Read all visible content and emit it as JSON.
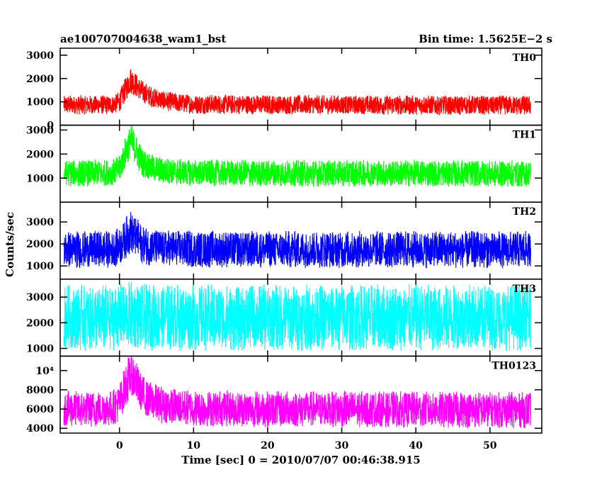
{
  "header": {
    "title": "ae100707004638_wam1_bst",
    "bin_time": "Bin time: 1.5625E−2 s"
  },
  "axes": {
    "xlabel": "Time [sec] 0 = 2010/07/07 00:46:38.915",
    "ylabel": "Counts/sec"
  },
  "chart_data": {
    "type": "line",
    "title": "ae100707004638_wam1_bst",
    "xlabel": "Time [sec] 0 = 2010/07/07 00:46:38.915",
    "ylabel": "Counts/sec",
    "xlim": [
      -8,
      57
    ],
    "x_ticks": [
      0,
      10,
      20,
      30,
      40,
      50
    ],
    "bin_time_s": 0.015625,
    "grid": false,
    "legend": "none",
    "series": [
      {
        "name": "TH0",
        "color": "#ff0000",
        "ylim": [
          0,
          3300
        ],
        "ytick_labels": [
          "0",
          "1000",
          "2000",
          "3000"
        ],
        "y_ticks": [
          0,
          1000,
          2000,
          3000
        ],
        "x": [
          -7.5,
          -4,
          -1,
          0,
          1,
          1.5,
          2,
          3,
          4,
          6,
          8,
          10,
          20,
          30,
          40,
          50,
          55.5
        ],
        "mean": [
          870,
          870,
          880,
          1000,
          1650,
          1950,
          1800,
          1450,
          1250,
          1050,
          950,
          900,
          880,
          870,
          860,
          850,
          850
        ],
        "spread": [
          420,
          420,
          420,
          450,
          550,
          600,
          550,
          500,
          460,
          430,
          420,
          420,
          420,
          420,
          420,
          420,
          420
        ]
      },
      {
        "name": "TH1",
        "color": "#00ff00",
        "ylim": [
          0,
          3200
        ],
        "ytick_labels": [
          "1000",
          "2000",
          "3000"
        ],
        "y_ticks": [
          1000,
          2000,
          3000
        ],
        "x": [
          -7.5,
          -4,
          -1,
          0,
          1,
          1.5,
          2,
          3,
          4,
          6,
          8,
          10,
          20,
          30,
          40,
          50,
          55.5
        ],
        "mean": [
          1200,
          1200,
          1220,
          1400,
          2200,
          2550,
          2300,
          1700,
          1450,
          1300,
          1250,
          1220,
          1200,
          1200,
          1200,
          1190,
          1190
        ],
        "spread": [
          560,
          560,
          560,
          600,
          700,
          750,
          700,
          620,
          590,
          570,
          560,
          560,
          560,
          560,
          560,
          560,
          560
        ]
      },
      {
        "name": "TH2",
        "color": "#0000ff",
        "ylim": [
          400,
          3900
        ],
        "ytick_labels": [
          "1000",
          "2000",
          "3000"
        ],
        "y_ticks": [
          1000,
          2000,
          3000
        ],
        "x": [
          -7.5,
          -4,
          -1,
          0,
          1,
          1.5,
          2,
          3,
          4,
          6,
          8,
          10,
          20,
          30,
          40,
          50,
          55.5
        ],
        "mean": [
          1750,
          1750,
          1760,
          1900,
          2350,
          2550,
          2400,
          2000,
          1880,
          1800,
          1780,
          1770,
          1760,
          1750,
          1750,
          1740,
          1740
        ],
        "spread": [
          850,
          850,
          850,
          880,
          950,
          1000,
          950,
          880,
          860,
          850,
          850,
          850,
          850,
          850,
          850,
          850,
          850
        ]
      },
      {
        "name": "TH3",
        "color": "#00ffff",
        "ylim": [
          700,
          3700
        ],
        "ytick_labels": [
          "1000",
          "2000",
          "3000"
        ],
        "y_ticks": [
          1000,
          2000,
          3000
        ],
        "x": [
          -7.5,
          -4,
          -1,
          0,
          1,
          1.5,
          2,
          3,
          4,
          6,
          8,
          10,
          20,
          30,
          40,
          50,
          55.5
        ],
        "mean": [
          2200,
          2200,
          2200,
          2230,
          2300,
          2330,
          2300,
          2230,
          2210,
          2200,
          2200,
          2200,
          2200,
          2200,
          2200,
          2200,
          2200
        ],
        "spread": [
          1300,
          1300,
          1300,
          1300,
          1300,
          1300,
          1300,
          1300,
          1300,
          1300,
          1300,
          1300,
          1300,
          1300,
          1300,
          1300,
          1300
        ]
      },
      {
        "name": "TH0123",
        "color": "#ff00ff",
        "ylim": [
          3500,
          11500
        ],
        "ytick_labels": [
          "4000",
          "6000",
          "8000",
          "10⁴"
        ],
        "y_ticks": [
          4000,
          6000,
          8000,
          10000
        ],
        "x": [
          -7.5,
          -4,
          -1,
          0,
          1,
          1.5,
          2,
          3,
          4,
          6,
          8,
          10,
          20,
          30,
          40,
          50,
          55.5
        ],
        "mean": [
          6000,
          6000,
          6050,
          6700,
          8800,
          9800,
          9200,
          7600,
          6900,
          6400,
          6200,
          6100,
          6000,
          6000,
          5950,
          5900,
          5900
        ],
        "spread": [
          1900,
          1900,
          1900,
          2000,
          2300,
          2500,
          2300,
          2100,
          2000,
          1950,
          1900,
          1900,
          1900,
          1900,
          1900,
          1900,
          1900
        ]
      }
    ]
  }
}
